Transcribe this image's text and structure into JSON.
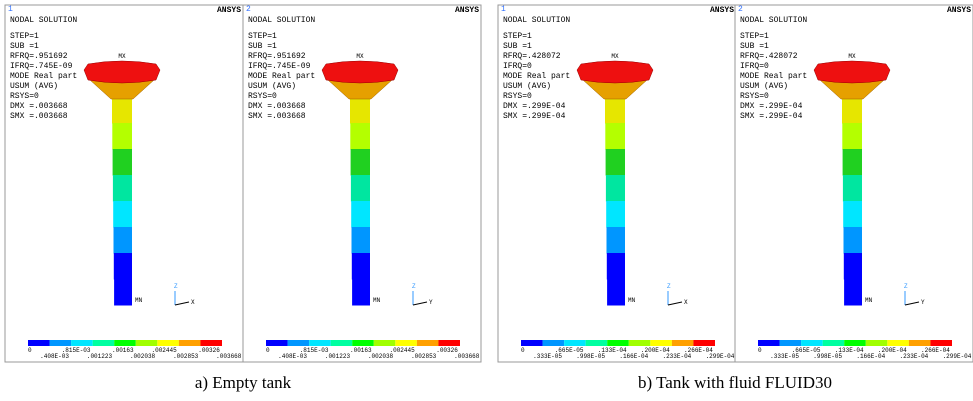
{
  "panels": [
    {
      "number": "1",
      "logo": "ANSYS",
      "heading": "NODAL SOLUTION",
      "lines": [
        "STEP=1",
        "SUB =1",
        "RFRQ=.951692",
        "IFRQ=.745E-09",
        "MODE Real part",
        "USUM      (AVG)",
        "RSYS=0",
        "DMX =.003668",
        "SMX =.003668"
      ],
      "max_label": "MX",
      "min_label": "MN",
      "axes": [
        "Z",
        "X"
      ],
      "legend_top": [
        "0",
        ".815E-03",
        ".00163",
        ".002445",
        ".00326"
      ],
      "legend_bottom": [
        ".408E-03",
        ".001223",
        ".002038",
        ".002853",
        ".003668"
      ]
    },
    {
      "number": "2",
      "logo": "ANSYS",
      "heading": "NODAL SOLUTION",
      "lines": [
        "STEP=1",
        "SUB =1",
        "RFRQ=.951692",
        "IFRQ=.745E-09",
        "MODE Real part",
        "USUM      (AVG)",
        "RSYS=0",
        "DMX =.003668",
        "SMX =.003668"
      ],
      "max_label": "MX",
      "min_label": "MN",
      "axes": [
        "Z",
        "Y"
      ],
      "legend_top": [
        "0",
        ".815E-03",
        ".00163",
        ".002445",
        ".00326"
      ],
      "legend_bottom": [
        ".408E-03",
        ".001223",
        ".002038",
        ".002853",
        ".003668"
      ]
    },
    {
      "number": "1",
      "logo": "ANSYS",
      "heading": "NODAL SOLUTION",
      "lines": [
        "STEP=1",
        "SUB =1",
        "RFRQ=.428072",
        "IFRQ=0",
        "MODE Real part",
        "USUM      (AVG)",
        "RSYS=0",
        "DMX =.299E-04",
        "SMX =.299E-04"
      ],
      "max_label": "MX",
      "min_label": "MN",
      "axes": [
        "Z",
        "X"
      ],
      "legend_top": [
        "0",
        ".665E-05",
        ".133E-04",
        ".200E-04",
        ".266E-04"
      ],
      "legend_bottom": [
        ".333E-05",
        ".998E-05",
        ".166E-04",
        ".233E-04",
        ".299E-04"
      ]
    },
    {
      "number": "2",
      "logo": "ANSYS",
      "heading": "NODAL SOLUTION",
      "lines": [
        "STEP=1",
        "SUB =1",
        "RFRQ=.428072",
        "IFRQ=0",
        "MODE Real part",
        "USUM      (AVG)",
        "RSYS=0",
        "DMX =.299E-04",
        "SMX =.299E-04"
      ],
      "max_label": "MX",
      "min_label": "MN",
      "axes": [
        "Z",
        "Y"
      ],
      "legend_top": [
        "0",
        ".665E-05",
        ".133E-04",
        ".200E-04",
        ".266E-04"
      ],
      "legend_bottom": [
        ".333E-05",
        ".998E-05",
        ".166E-04",
        ".233E-04",
        ".299E-04"
      ]
    }
  ],
  "captions": [
    "a) Empty tank",
    "b) Tank with fluid FLUID30"
  ]
}
